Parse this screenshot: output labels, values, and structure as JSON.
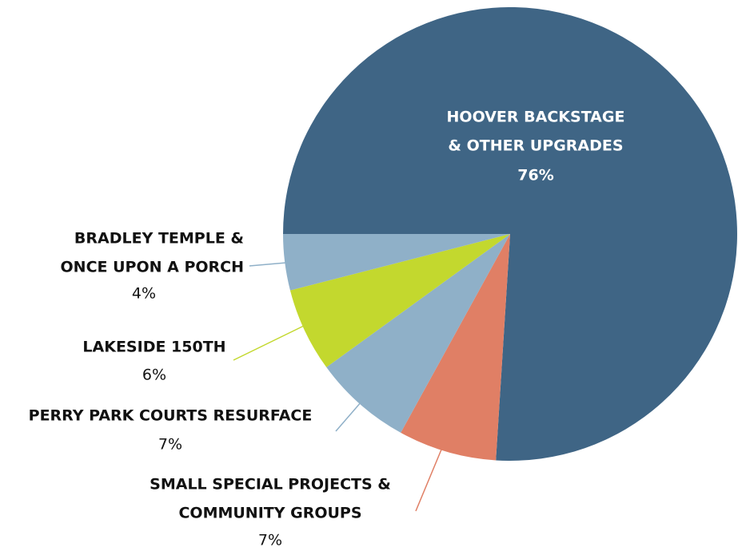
{
  "chart_data": {
    "type": "pie",
    "categories": [
      [
        "HOOVER BACKSTAGE",
        "& OTHER UPGRADES"
      ],
      [
        "SMALL SPECIAL PROJECTS &",
        "COMMUNITY GROUPS"
      ],
      [
        "PERRY PARK COURTS RESURFACE"
      ],
      [
        "LAKESIDE 150TH"
      ],
      [
        "BRADLEY TEMPLE &",
        "ONCE UPON A PORCH"
      ]
    ],
    "values": [
      76,
      7,
      7,
      6,
      4
    ],
    "value_labels": [
      "76%",
      "7%",
      "7%",
      "6%",
      "4%"
    ],
    "colors": [
      "#3f6585",
      "#e07f65",
      "#8fb0c8",
      "#c3d82e",
      "#8fb0c8"
    ]
  }
}
